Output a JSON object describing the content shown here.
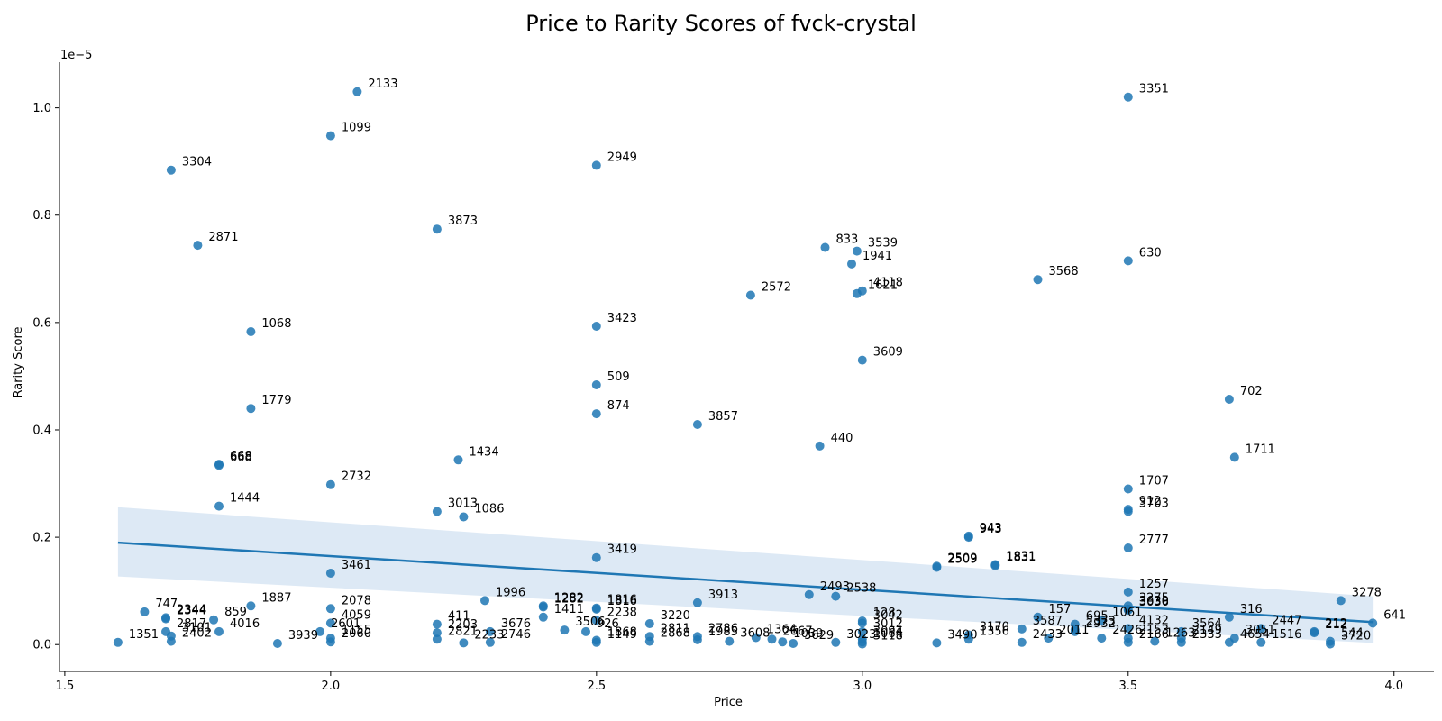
{
  "chart_data": {
    "type": "scatter",
    "title": "Price to Rarity Scores of fvck-crystal",
    "xlabel": "Price",
    "ylabel": "Rarity Score",
    "y_offset_text": "1e−5",
    "xlim": [
      1.49,
      4.075
    ],
    "ylim": [
      -0.05,
      1.085
    ],
    "x_ticks": [
      1.5,
      2.0,
      2.5,
      3.0,
      3.5,
      4.0
    ],
    "x_tick_labels": [
      "1.5",
      "2.0",
      "2.5",
      "3.0",
      "3.5",
      "4.0"
    ],
    "y_ticks": [
      0.0,
      0.2,
      0.4,
      0.6,
      0.8,
      1.0
    ],
    "y_tick_labels": [
      "0.0",
      "0.2",
      "0.4",
      "0.6",
      "0.8",
      "1.0"
    ],
    "point_color": "#1f77b4",
    "regression_color": "#1f77b4",
    "ci_color": "#c6dbef",
    "regression": {
      "x": [
        1.6,
        3.96
      ],
      "y": [
        0.19,
        0.042
      ],
      "ci_upper": [
        0.256,
        0.09
      ],
      "ci_lower": [
        0.127,
        0.003
      ]
    },
    "points": [
      {
        "label": "2133",
        "x": 2.05,
        "y": 1.03
      },
      {
        "label": "3351",
        "x": 3.5,
        "y": 1.02
      },
      {
        "label": "1099",
        "x": 2.0,
        "y": 0.948
      },
      {
        "label": "3304",
        "x": 1.7,
        "y": 0.884
      },
      {
        "label": "2949",
        "x": 2.5,
        "y": 0.893
      },
      {
        "label": "3873",
        "x": 2.2,
        "y": 0.774
      },
      {
        "label": "2871",
        "x": 1.75,
        "y": 0.744
      },
      {
        "label": "833",
        "x": 2.93,
        "y": 0.74
      },
      {
        "label": "3539",
        "x": 2.99,
        "y": 0.733
      },
      {
        "label": "630",
        "x": 3.5,
        "y": 0.715
      },
      {
        "label": "1941",
        "x": 2.98,
        "y": 0.709
      },
      {
        "label": "3568",
        "x": 3.33,
        "y": 0.68
      },
      {
        "label": "4118",
        "x": 3.0,
        "y": 0.659
      },
      {
        "label": "1621",
        "x": 2.99,
        "y": 0.654
      },
      {
        "label": "2572",
        "x": 2.79,
        "y": 0.651
      },
      {
        "label": "1068",
        "x": 1.85,
        "y": 0.583
      },
      {
        "label": "3423",
        "x": 2.5,
        "y": 0.593
      },
      {
        "label": "3609",
        "x": 3.0,
        "y": 0.53
      },
      {
        "label": "509",
        "x": 2.5,
        "y": 0.484
      },
      {
        "label": "702",
        "x": 3.69,
        "y": 0.457
      },
      {
        "label": "1779",
        "x": 1.85,
        "y": 0.44
      },
      {
        "label": "874",
        "x": 2.5,
        "y": 0.43
      },
      {
        "label": "3857",
        "x": 2.69,
        "y": 0.41
      },
      {
        "label": "440",
        "x": 2.92,
        "y": 0.37
      },
      {
        "label": "1711",
        "x": 3.7,
        "y": 0.349
      },
      {
        "label": "1434",
        "x": 2.24,
        "y": 0.344
      },
      {
        "label": "668",
        "x": 1.79,
        "y": 0.334
      },
      {
        "label": "668",
        "x": 1.79,
        "y": 0.336
      },
      {
        "label": "2732",
        "x": 2.0,
        "y": 0.298
      },
      {
        "label": "1707",
        "x": 3.5,
        "y": 0.29
      },
      {
        "label": "1444",
        "x": 1.79,
        "y": 0.258
      },
      {
        "label": "912",
        "x": 3.5,
        "y": 0.252
      },
      {
        "label": "3703",
        "x": 3.5,
        "y": 0.248
      },
      {
        "label": "3013",
        "x": 2.2,
        "y": 0.248
      },
      {
        "label": "1086",
        "x": 2.25,
        "y": 0.238
      },
      {
        "label": "943",
        "x": 3.2,
        "y": 0.2
      },
      {
        "label": "943",
        "x": 3.2,
        "y": 0.202
      },
      {
        "label": "2777",
        "x": 3.5,
        "y": 0.18
      },
      {
        "label": "3419",
        "x": 2.5,
        "y": 0.162
      },
      {
        "label": "2509",
        "x": 3.14,
        "y": 0.144
      },
      {
        "label": "2509",
        "x": 3.14,
        "y": 0.146
      },
      {
        "label": "1831",
        "x": 3.25,
        "y": 0.147
      },
      {
        "label": "1831",
        "x": 3.25,
        "y": 0.149
      },
      {
        "label": "3461",
        "x": 2.0,
        "y": 0.133
      },
      {
        "label": "1257",
        "x": 3.5,
        "y": 0.098
      },
      {
        "label": "2493",
        "x": 2.9,
        "y": 0.093
      },
      {
        "label": "2538",
        "x": 2.95,
        "y": 0.09
      },
      {
        "label": "1996",
        "x": 2.29,
        "y": 0.082
      },
      {
        "label": "3278",
        "x": 3.9,
        "y": 0.082
      },
      {
        "label": "3913",
        "x": 2.69,
        "y": 0.078
      },
      {
        "label": "1282",
        "x": 2.4,
        "y": 0.07
      },
      {
        "label": "1282",
        "x": 2.4,
        "y": 0.072
      },
      {
        "label": "1816",
        "x": 2.5,
        "y": 0.068
      },
      {
        "label": "1816",
        "x": 2.5,
        "y": 0.066
      },
      {
        "label": "1887",
        "x": 1.85,
        "y": 0.072
      },
      {
        "label": "3275",
        "x": 3.5,
        "y": 0.072
      },
      {
        "label": "3630",
        "x": 3.5,
        "y": 0.066
      },
      {
        "label": "3036",
        "x": 3.5,
        "y": 0.064
      },
      {
        "label": "2078",
        "x": 2.0,
        "y": 0.067
      },
      {
        "label": "747",
        "x": 1.65,
        "y": 0.061
      },
      {
        "label": "2344",
        "x": 1.69,
        "y": 0.05
      },
      {
        "label": "2344",
        "x": 1.69,
        "y": 0.048
      },
      {
        "label": "859",
        "x": 1.78,
        "y": 0.046
      },
      {
        "label": "1411",
        "x": 2.4,
        "y": 0.051
      },
      {
        "label": "157",
        "x": 3.33,
        "y": 0.051
      },
      {
        "label": "316",
        "x": 3.69,
        "y": 0.051
      },
      {
        "label": "2238",
        "x": 2.5,
        "y": 0.045
      },
      {
        "label": "1061",
        "x": 3.45,
        "y": 0.045
      },
      {
        "label": "4059",
        "x": 2.0,
        "y": 0.04
      },
      {
        "label": "411",
        "x": 2.2,
        "y": 0.038
      },
      {
        "label": "3220",
        "x": 2.6,
        "y": 0.039
      },
      {
        "label": "695",
        "x": 3.4,
        "y": 0.038
      },
      {
        "label": "3042",
        "x": 3.0,
        "y": 0.04
      },
      {
        "label": "128",
        "x": 3.0,
        "y": 0.044
      },
      {
        "label": "4132",
        "x": 3.5,
        "y": 0.03
      },
      {
        "label": "641",
        "x": 3.96,
        "y": 0.04
      },
      {
        "label": "2447",
        "x": 3.75,
        "y": 0.03
      },
      {
        "label": "3506",
        "x": 2.44,
        "y": 0.027
      },
      {
        "label": "926",
        "x": 2.48,
        "y": 0.024
      },
      {
        "label": "4016",
        "x": 1.79,
        "y": 0.024
      },
      {
        "label": "2817",
        "x": 1.69,
        "y": 0.024
      },
      {
        "label": "3676",
        "x": 2.3,
        "y": 0.024
      },
      {
        "label": "2203",
        "x": 2.2,
        "y": 0.022
      },
      {
        "label": "2601",
        "x": 1.98,
        "y": 0.024
      },
      {
        "label": "3587",
        "x": 3.3,
        "y": 0.029
      },
      {
        "label": "2373",
        "x": 3.4,
        "y": 0.028
      },
      {
        "label": "2932",
        "x": 3.4,
        "y": 0.024
      },
      {
        "label": "3564",
        "x": 3.6,
        "y": 0.024
      },
      {
        "label": "3170",
        "x": 3.2,
        "y": 0.018
      },
      {
        "label": "2811",
        "x": 2.6,
        "y": 0.015
      },
      {
        "label": "2786",
        "x": 2.69,
        "y": 0.015
      },
      {
        "label": "1364",
        "x": 2.8,
        "y": 0.013
      },
      {
        "label": "212",
        "x": 3.85,
        "y": 0.024
      },
      {
        "label": "212",
        "x": 3.85,
        "y": 0.022
      },
      {
        "label": "3051",
        "x": 3.7,
        "y": 0.012
      },
      {
        "label": "3012",
        "x": 3.0,
        "y": 0.024
      },
      {
        "label": "1356",
        "x": 3.2,
        "y": 0.01
      },
      {
        "label": "2011",
        "x": 3.35,
        "y": 0.012
      },
      {
        "label": "2426",
        "x": 3.45,
        "y": 0.012
      },
      {
        "label": "2149",
        "x": 3.6,
        "y": 0.012
      },
      {
        "label": "3101",
        "x": 1.7,
        "y": 0.016
      },
      {
        "label": "1351",
        "x": 1.6,
        "y": 0.004
      },
      {
        "label": "2402",
        "x": 1.7,
        "y": 0.006
      },
      {
        "label": "3939",
        "x": 1.9,
        "y": 0.002
      },
      {
        "label": "2746",
        "x": 2.3,
        "y": 0.004
      },
      {
        "label": "2233",
        "x": 2.25,
        "y": 0.003
      },
      {
        "label": "3490",
        "x": 3.14,
        "y": 0.003
      },
      {
        "label": "1985",
        "x": 2.69,
        "y": 0.009
      },
      {
        "label": "2868",
        "x": 2.6,
        "y": 0.006
      },
      {
        "label": "3608",
        "x": 2.75,
        "y": 0.006
      },
      {
        "label": "1039",
        "x": 2.85,
        "y": 0.005
      },
      {
        "label": "3629",
        "x": 2.87,
        "y": 0.002
      },
      {
        "label": "3023",
        "x": 2.95,
        "y": 0.004
      },
      {
        "label": "1516",
        "x": 3.75,
        "y": 0.004
      },
      {
        "label": "2433",
        "x": 3.3,
        "y": 0.004
      },
      {
        "label": "2333",
        "x": 3.6,
        "y": 0.004
      },
      {
        "label": "3720",
        "x": 3.88,
        "y": 0.001
      },
      {
        "label": "544",
        "x": 3.88,
        "y": 0.006
      },
      {
        "label": "4654",
        "x": 3.69,
        "y": 0.004
      },
      {
        "label": "1263",
        "x": 3.55,
        "y": 0.006
      },
      {
        "label": "2166",
        "x": 3.5,
        "y": 0.004
      },
      {
        "label": "2153",
        "x": 3.5,
        "y": 0.012
      },
      {
        "label": "1868",
        "x": 2.5,
        "y": 0.008
      },
      {
        "label": "1149",
        "x": 2.5,
        "y": 0.004
      },
      {
        "label": "2060",
        "x": 2.0,
        "y": 0.005
      },
      {
        "label": "1155",
        "x": 2.0,
        "y": 0.012
      },
      {
        "label": "2821",
        "x": 2.2,
        "y": 0.01
      },
      {
        "label": "2667",
        "x": 2.83,
        "y": 0.01
      },
      {
        "label": "3094",
        "x": 3.0,
        "y": 0.01
      },
      {
        "label": "1064",
        "x": 3.0,
        "y": 0.005
      },
      {
        "label": "3118",
        "x": 3.0,
        "y": 0.001
      }
    ]
  }
}
